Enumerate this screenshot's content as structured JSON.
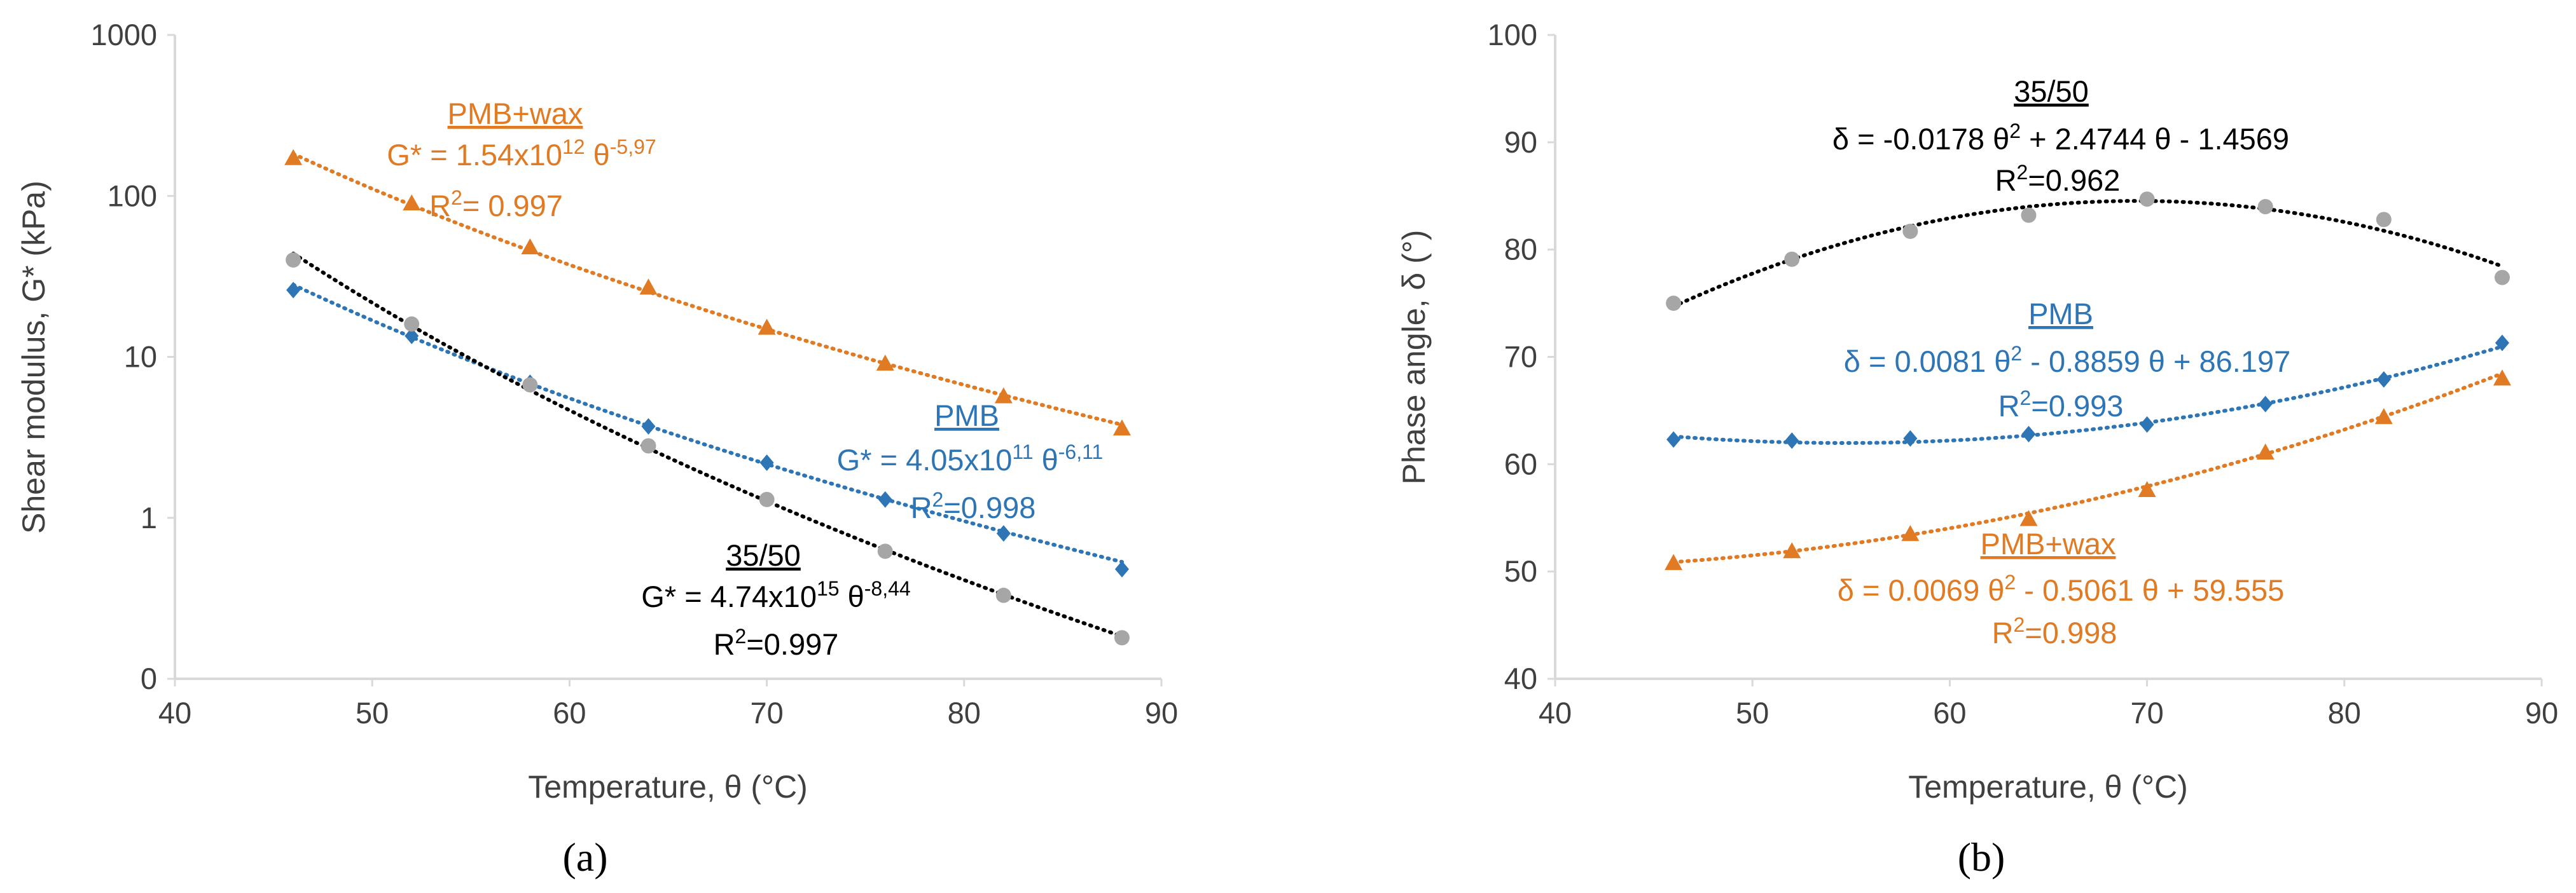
{
  "colors": {
    "pmb": "#2E75B6",
    "pmb_wax": "#E07A23",
    "b3550_marker": "#A6A6A6",
    "b3550_trend": "#000000",
    "axis": "#D9D9D9",
    "text": "#404040"
  },
  "chart_data": [
    {
      "id": "a",
      "type": "scatter",
      "subplot_label": "(a)",
      "xlabel": "Temperature, θ (°C)",
      "ylabel": "Shear modulus, G* (kPa)",
      "xlim": [
        40,
        90
      ],
      "x_ticks": [
        40,
        50,
        60,
        70,
        80,
        90
      ],
      "yscale": "log",
      "ylim": [
        0.1,
        1000
      ],
      "y_ticks": [
        0.1,
        1,
        10,
        100,
        1000
      ],
      "y_tick_labels": [
        "0",
        "1",
        "10",
        "100",
        "1000"
      ],
      "grid": false,
      "x": [
        46,
        52,
        58,
        64,
        70,
        76,
        82,
        88
      ],
      "series": [
        {
          "name": "PMB+wax",
          "color_key": "pmb_wax",
          "marker": "triangle",
          "values": [
            172,
            90,
            48,
            27,
            15.2,
            9.1,
            5.7,
            3.6
          ],
          "trendline": {
            "type": "power",
            "a": 1540000000000.0,
            "b": -5.97
          },
          "annotation": {
            "name": "PMB+wax",
            "eq_pre": "G* = 1.54x10",
            "eq_exp1": "12",
            "eq_mid": " θ",
            "eq_exp2": "-5,97",
            "r2_pre": "R",
            "r2_exp": "2",
            "r2_post": "= 0.997"
          }
        },
        {
          "name": "PMB",
          "color_key": "pmb",
          "marker": "diamond",
          "values": [
            26,
            13.5,
            6.9,
            3.7,
            2.2,
            1.3,
            0.8,
            0.48
          ],
          "trendline": {
            "type": "power",
            "a": 405000000000.0,
            "b": -6.11
          },
          "annotation": {
            "name": "PMB",
            "eq_pre": "G* = 4.05x10",
            "eq_exp1": "11",
            "eq_mid": " θ",
            "eq_exp2": "-6,11",
            "r2_pre": "R",
            "r2_exp": "2",
            "r2_post": "=0.998"
          }
        },
        {
          "name": "35/50",
          "color_key": "b3550_marker",
          "trend_color_key": "b3550_trend",
          "marker": "circle",
          "values": [
            40,
            16,
            6.7,
            2.8,
            1.3,
            0.62,
            0.33,
            0.18
          ],
          "trendline": {
            "type": "power",
            "a": 4740000000000000.0,
            "b": -8.44
          },
          "annotation": {
            "name": "35/50",
            "eq_pre": "G* = 4.74x10",
            "eq_exp1": "15",
            "eq_mid": " θ",
            "eq_exp2": "-8,44",
            "r2_pre": "R",
            "r2_exp": "2",
            "r2_post": "=0.997"
          }
        }
      ]
    },
    {
      "id": "b",
      "type": "scatter",
      "subplot_label": "(b)",
      "xlabel": "Temperature, θ (°C)",
      "ylabel": "Phase angle, δ (°)",
      "xlim": [
        40,
        90
      ],
      "x_ticks": [
        40,
        50,
        60,
        70,
        80,
        90
      ],
      "yscale": "linear",
      "ylim": [
        40,
        100
      ],
      "y_ticks": [
        40,
        50,
        60,
        70,
        80,
        90,
        100
      ],
      "grid": false,
      "x": [
        46,
        52,
        58,
        64,
        70,
        76,
        82,
        88
      ],
      "series": [
        {
          "name": "35/50",
          "color_key": "b3550_marker",
          "trend_color_key": "b3550_trend",
          "marker": "circle",
          "values": [
            75.0,
            79.1,
            81.7,
            83.2,
            84.7,
            84.0,
            82.8,
            77.4
          ],
          "trendline": {
            "type": "poly2",
            "a": -0.0178,
            "b": 2.4744,
            "c": -1.4569
          },
          "annotation": {
            "name": "35/50",
            "eq1": "δ = -0.0178 θ",
            "sup1": "2",
            "eq2": " + 2.4744 θ - 1.4569",
            "r2_pre": "R",
            "r2_exp": "2",
            "r2_post": "=0.962"
          }
        },
        {
          "name": "PMB",
          "color_key": "pmb",
          "marker": "diamond",
          "values": [
            62.3,
            62.2,
            62.4,
            62.8,
            63.7,
            65.6,
            67.9,
            71.3
          ],
          "trendline": {
            "type": "poly2",
            "a": 0.0081,
            "b": -0.8859,
            "c": 86.197
          },
          "annotation": {
            "name": "PMB",
            "eq1": "δ = 0.0081 θ",
            "sup1": "2",
            "eq2": " - 0.8859 θ + 86.197",
            "r2_pre": "R",
            "r2_exp": "2",
            "r2_post": "=0.993"
          }
        },
        {
          "name": "PMB+wax",
          "color_key": "pmb_wax",
          "marker": "triangle",
          "values": [
            50.8,
            51.9,
            53.5,
            54.9,
            57.6,
            61.1,
            64.4,
            68.0
          ],
          "trendline": {
            "type": "poly2",
            "a": 0.0069,
            "b": -0.5061,
            "c": 59.555
          },
          "annotation": {
            "name": "PMB+wax",
            "eq1": "δ = 0.0069 θ",
            "sup1": "2",
            "eq2": " - 0.5061 θ + 59.555",
            "r2_pre": "R",
            "r2_exp": "2",
            "r2_post": "=0.998"
          }
        }
      ]
    }
  ]
}
